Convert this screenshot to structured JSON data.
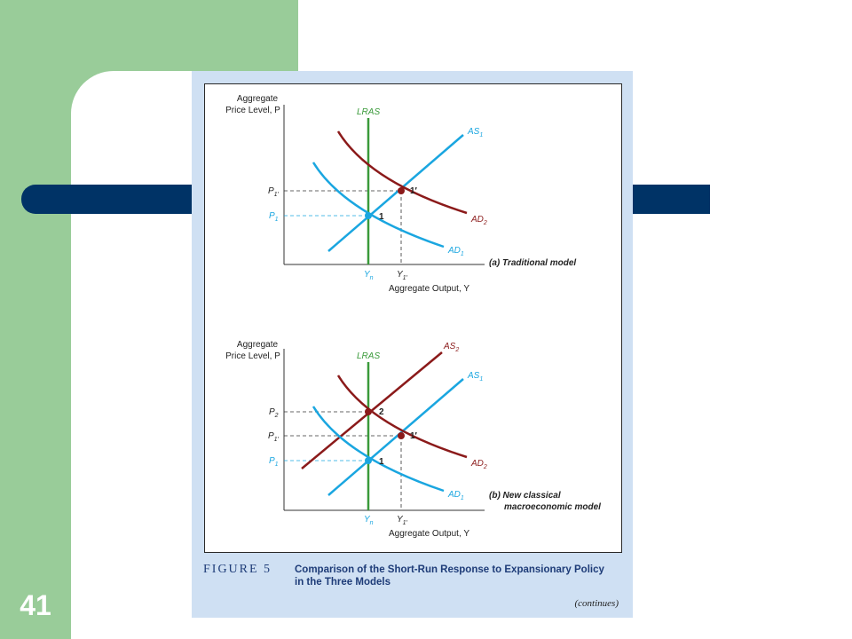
{
  "slide": {
    "page_number": "41"
  },
  "figure": {
    "caption_number": "FIGURE 5",
    "caption_line1": "Comparison of the Short-Run Response to Expansionary Policy",
    "caption_line2": "in the Three Models",
    "continues": "(continues)"
  },
  "panel_a": {
    "y_title_1": "Aggregate",
    "y_title_2": "Price Level, P",
    "x_title": "Aggregate Output, Y",
    "lras": "LRAS",
    "as1": "AS",
    "as1_sub": "1",
    "ad1": "AD",
    "ad1_sub": "1",
    "ad2": "AD",
    "ad2_sub": "2",
    "p1prime": "P",
    "p1prime_sub": "1′",
    "p1": "P",
    "p1_sub": "1",
    "yn": "Y",
    "yn_sub": "n",
    "y1prime": "Y",
    "y1prime_sub": "1′",
    "pt1": "1",
    "pt1prime": "1′",
    "model_label": "(a) Traditional model"
  },
  "panel_b": {
    "y_title_1": "Aggregate",
    "y_title_2": "Price Level, P",
    "x_title": "Aggregate Output, Y",
    "lras": "LRAS",
    "as1": "AS",
    "as1_sub": "1",
    "as2": "AS",
    "as2_sub": "2",
    "ad1": "AD",
    "ad1_sub": "1",
    "ad2": "AD",
    "ad2_sub": "2",
    "p2": "P",
    "p2_sub": "2",
    "p1prime": "P",
    "p1prime_sub": "1′",
    "p1": "P",
    "p1_sub": "1",
    "yn": "Y",
    "yn_sub": "n",
    "y1prime": "Y",
    "y1prime_sub": "1′",
    "pt1": "1",
    "pt1prime": "1′",
    "pt2": "2",
    "model_label_1": "(b) New classical",
    "model_label_2": "macroeconomic model"
  },
  "colors": {
    "green": "#99cc99",
    "navy": "#003366",
    "panel_blue": "#cfe0f3",
    "cyan": "#1aa6e0",
    "darkred": "#8b1a1a",
    "lras_green": "#3a9a3a"
  }
}
